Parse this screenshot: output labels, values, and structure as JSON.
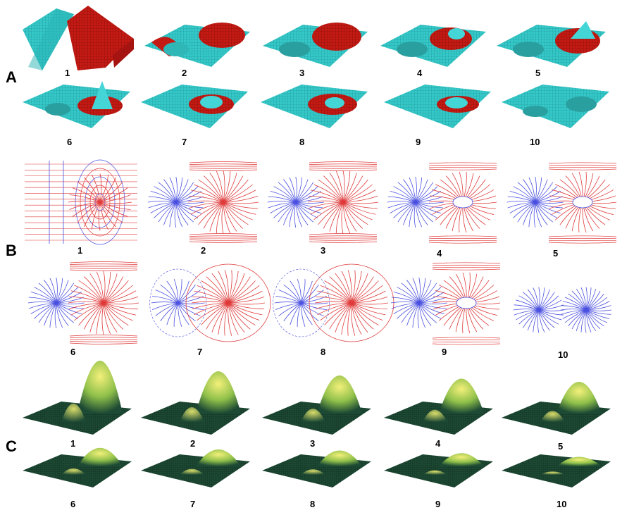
{
  "figure": {
    "rows": [
      {
        "id": "A",
        "label": "A",
        "description": "3D mesh surfaces colored cyan and red",
        "panels": [
          "1",
          "2",
          "3",
          "4",
          "5",
          "6",
          "7",
          "8",
          "9",
          "10"
        ]
      },
      {
        "id": "B",
        "label": "B",
        "description": "streamline field maps in blue and red",
        "panels": [
          "1",
          "2",
          "3",
          "4",
          "5",
          "6",
          "7",
          "8",
          "9",
          "10"
        ]
      },
      {
        "id": "C",
        "label": "C",
        "description": "3D surface peaks shaded yellow-green",
        "panels": [
          "1",
          "2",
          "3",
          "4",
          "5",
          "6",
          "7",
          "8",
          "9",
          "10"
        ]
      }
    ],
    "colors": {
      "cyan": "#35c8c8",
      "red": "#c41a14",
      "blue": "#4a50e0",
      "stream_red": "#e03a3a",
      "surface_dark": "#1d4a34",
      "surface_light": "#e6e872"
    }
  }
}
